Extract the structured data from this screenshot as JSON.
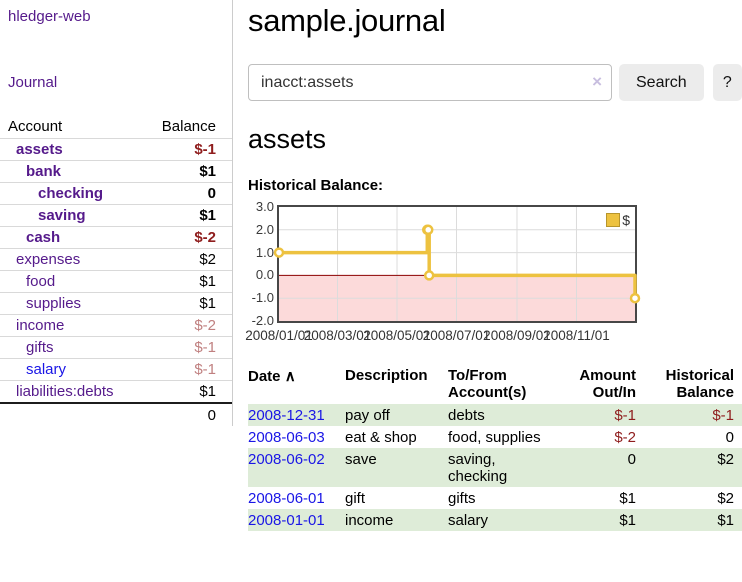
{
  "app": {
    "title": "hledger-web",
    "journal_link": "Journal"
  },
  "sidebar": {
    "col_account": "Account",
    "col_balance": "Balance",
    "accounts": [
      {
        "name": "assets",
        "balance": "$-1",
        "depth": 1,
        "emphasis": true,
        "balance_tone": "neg-strong",
        "link_tone": "visited"
      },
      {
        "name": "bank",
        "balance": "$1",
        "depth": 2,
        "emphasis": true,
        "balance_tone": "normal",
        "link_tone": "visited"
      },
      {
        "name": "checking",
        "balance": "0",
        "depth": 3,
        "emphasis": true,
        "balance_tone": "normal",
        "link_tone": "visited"
      },
      {
        "name": "saving",
        "balance": "$1",
        "depth": 3,
        "emphasis": true,
        "balance_tone": "normal",
        "link_tone": "visited"
      },
      {
        "name": "cash",
        "balance": "$-2",
        "depth": 2,
        "emphasis": true,
        "balance_tone": "neg-strong",
        "link_tone": "visited"
      },
      {
        "name": "expenses",
        "balance": "$2",
        "depth": 1,
        "emphasis": false,
        "balance_tone": "normal",
        "link_tone": "visited"
      },
      {
        "name": "food",
        "balance": "$1",
        "depth": 2,
        "emphasis": false,
        "balance_tone": "normal",
        "link_tone": "visited"
      },
      {
        "name": "supplies",
        "balance": "$1",
        "depth": 2,
        "emphasis": false,
        "balance_tone": "normal",
        "link_tone": "visited"
      },
      {
        "name": "income",
        "balance": "$-2",
        "depth": 1,
        "emphasis": false,
        "balance_tone": "neg-soft",
        "link_tone": "visited"
      },
      {
        "name": "gifts",
        "balance": "$-1",
        "depth": 2,
        "emphasis": false,
        "balance_tone": "neg-soft",
        "link_tone": "visited"
      },
      {
        "name": "salary",
        "balance": "$-1",
        "depth": 2,
        "emphasis": false,
        "balance_tone": "neg-soft",
        "link_tone": "unvisited"
      },
      {
        "name": "liabilities:debts",
        "balance": "$1",
        "depth": 1,
        "emphasis": false,
        "balance_tone": "normal",
        "link_tone": "visited"
      }
    ],
    "total": "0"
  },
  "main": {
    "title": "sample.journal",
    "search": {
      "value": "inacct:assets",
      "clear": "×",
      "search_button": "Search",
      "help_button": "?"
    },
    "heading": "assets",
    "chart_title": "Historical Balance:"
  },
  "chart_data": {
    "type": "line",
    "step": true,
    "title": "Historical Balance",
    "x_range": [
      "2008-01-01",
      "2008-12-31"
    ],
    "ylim": [
      -2,
      3
    ],
    "yticks": [
      3,
      2,
      1,
      0,
      -1,
      -2
    ],
    "ytick_labels": [
      "3.0",
      "2.0",
      "1.0",
      "0.0",
      "-1.0",
      "-2.0"
    ],
    "xtick_dates": [
      "2008-01-01",
      "2008-03-01",
      "2008-05-01",
      "2008-07-01",
      "2008-09-01",
      "2008-11-01"
    ],
    "xtick_labels": [
      "2008/01/01",
      "2008/03/01",
      "2008/05/01",
      "2008/07/01",
      "2008/09/01",
      "2008/11/01"
    ],
    "legend": [
      {
        "label": "$",
        "color": "#edc240"
      }
    ],
    "series": [
      {
        "name": "$",
        "color": "#edc240",
        "points": [
          [
            "2008-01-01",
            1
          ],
          [
            "2008-06-01",
            2
          ],
          [
            "2008-06-02",
            2
          ],
          [
            "2008-06-03",
            0
          ],
          [
            "2008-12-31",
            -1
          ]
        ]
      }
    ],
    "grid": true,
    "negative_fill": "#fcdada",
    "zero_line_color": "#8b0000",
    "grid_color": "#dcdcdc",
    "legend_position": "top-right"
  },
  "register": {
    "headers": {
      "date": "Date",
      "sort_icon": "∧",
      "description": "Description",
      "accounts": "To/From Account(s)",
      "amount": "Amount Out/In",
      "balance": "Historical Balance"
    },
    "rows": [
      {
        "date": "2008-12-31",
        "description": "pay off",
        "accounts": "debts",
        "amount": "$-1",
        "balance": "$-1",
        "amount_neg": true,
        "balance_neg": true
      },
      {
        "date": "2008-06-03",
        "description": "eat & shop",
        "accounts": "food, supplies",
        "amount": "$-2",
        "balance": "0",
        "amount_neg": true,
        "balance_neg": false
      },
      {
        "date": "2008-06-02",
        "description": "save",
        "accounts": "saving, checking",
        "amount": "0",
        "balance": "$2",
        "amount_neg": false,
        "balance_neg": false
      },
      {
        "date": "2008-06-01",
        "description": "gift",
        "accounts": "gifts",
        "amount": "$1",
        "balance": "$2",
        "amount_neg": false,
        "balance_neg": false
      },
      {
        "date": "2008-01-01",
        "description": "income",
        "accounts": "salary",
        "amount": "$1",
        "balance": "$1",
        "amount_neg": false,
        "balance_neg": false
      }
    ]
  },
  "colors": {
    "link_purple": "#551a8b",
    "link_blue": "#1a16e6",
    "negative_strong": "#8f1d1d",
    "negative_soft": "#c08080",
    "row_green": "#deecd8",
    "series_yellow": "#edc240"
  }
}
